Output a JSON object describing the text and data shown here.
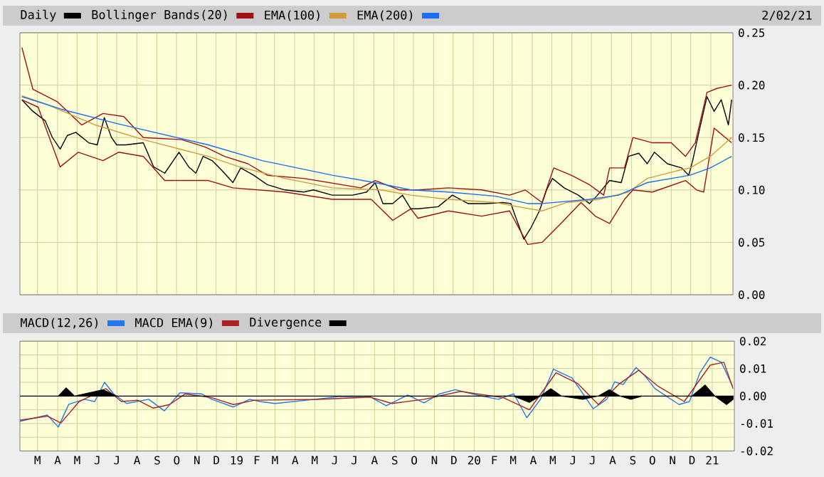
{
  "chart_data": [
    {
      "type": "line",
      "legend": "top",
      "grid": true,
      "tick_labels": "y",
      "annotations": [
        "2/02/21"
      ],
      "xlim": [
        "2018-02-02",
        "2021-02-04"
      ],
      "ylim": [
        0,
        0.25
      ],
      "xticks": [
        {
          "value": "2018-03-01",
          "label": null
        },
        {
          "value": "2018-04-01",
          "label": null
        },
        {
          "value": "2018-05-01",
          "label": null
        },
        {
          "value": "2018-06-01",
          "label": null
        },
        {
          "value": "2018-07-01",
          "label": null
        },
        {
          "value": "2018-08-01",
          "label": null
        },
        {
          "value": "2018-09-01",
          "label": null
        },
        {
          "value": "2018-10-01",
          "label": null
        },
        {
          "value": "2018-11-01",
          "label": null
        },
        {
          "value": "2018-12-01",
          "label": null
        },
        {
          "value": "2019-01-01",
          "label": null
        },
        {
          "value": "2019-02-01",
          "label": null
        },
        {
          "value": "2019-03-01",
          "label": null
        },
        {
          "value": "2019-04-01",
          "label": null
        },
        {
          "value": "2019-05-01",
          "label": null
        },
        {
          "value": "2019-06-01",
          "label": null
        },
        {
          "value": "2019-07-01",
          "label": null
        },
        {
          "value": "2019-08-01",
          "label": null
        },
        {
          "value": "2019-09-01",
          "label": null
        },
        {
          "value": "2019-10-01",
          "label": null
        },
        {
          "value": "2019-11-01",
          "label": null
        },
        {
          "value": "2019-12-01",
          "label": null
        },
        {
          "value": "2020-01-01",
          "label": null
        },
        {
          "value": "2020-02-01",
          "label": null
        },
        {
          "value": "2020-03-01",
          "label": null
        },
        {
          "value": "2020-04-01",
          "label": null
        },
        {
          "value": "2020-05-01",
          "label": null
        },
        {
          "value": "2020-06-01",
          "label": null
        },
        {
          "value": "2020-07-01",
          "label": null
        },
        {
          "value": "2020-08-01",
          "label": null
        },
        {
          "value": "2020-09-01",
          "label": null
        },
        {
          "value": "2020-10-01",
          "label": null
        },
        {
          "value": "2020-11-01",
          "label": null
        },
        {
          "value": "2020-12-01",
          "label": null
        },
        {
          "value": "2021-01-01",
          "label": null
        }
      ],
      "yticks": [
        {
          "value": 0,
          "label": "0.00"
        },
        {
          "value": 0.05,
          "label": "0.05"
        },
        {
          "value": 0.1,
          "label": "0.10"
        },
        {
          "value": 0.15,
          "label": "0.15"
        },
        {
          "value": 0.2,
          "label": "0.20"
        },
        {
          "value": 0.25,
          "label": "0.25"
        }
      ],
      "series": [
        {
          "name": "Daily",
          "color": "#000000",
          "x": [
            "2018-02-05",
            "2018-02-22",
            "2018-03-13",
            "2018-03-24",
            "2018-04-05",
            "2018-04-16",
            "2018-04-29",
            "2018-05-19",
            "2018-06-01",
            "2018-06-12",
            "2018-06-23",
            "2018-07-01",
            "2018-07-15",
            "2018-08-11",
            "2018-08-27",
            "2018-09-13",
            "2018-10-05",
            "2018-10-20",
            "2018-10-31",
            "2018-11-11",
            "2018-11-25",
            "2018-12-14",
            "2018-12-27",
            "2019-01-08",
            "2019-01-28",
            "2019-02-18",
            "2019-03-17",
            "2019-04-15",
            "2019-04-30",
            "2019-05-29",
            "2019-06-29",
            "2019-07-21",
            "2019-08-03",
            "2019-08-15",
            "2019-08-30",
            "2019-09-14",
            "2019-09-27",
            "2019-10-08",
            "2019-11-08",
            "2019-11-30",
            "2019-12-24",
            "2020-01-20",
            "2020-02-16",
            "2020-02-28",
            "2020-03-10",
            "2020-03-19",
            "2020-03-30",
            "2020-04-12",
            "2020-04-23",
            "2020-05-02",
            "2020-05-20",
            "2020-06-11",
            "2020-06-28",
            "2020-07-09",
            "2020-07-29",
            "2020-08-16",
            "2020-08-27",
            "2020-09-12",
            "2020-09-25",
            "2020-10-06",
            "2020-10-26",
            "2020-11-17",
            "2020-11-28",
            "2020-12-04",
            "2020-12-15",
            "2020-12-26",
            "2021-01-06",
            "2021-01-17",
            "2021-01-28",
            "2021-02-02"
          ],
          "values": [
            0.186,
            0.175,
            0.166,
            0.15,
            0.139,
            0.152,
            0.155,
            0.145,
            0.143,
            0.169,
            0.15,
            0.143,
            0.143,
            0.145,
            0.122,
            0.116,
            0.136,
            0.122,
            0.116,
            0.132,
            0.128,
            0.116,
            0.107,
            0.121,
            0.114,
            0.105,
            0.1,
            0.098,
            0.1,
            0.095,
            0.095,
            0.098,
            0.107,
            0.087,
            0.087,
            0.095,
            0.082,
            0.082,
            0.084,
            0.095,
            0.087,
            0.087,
            0.088,
            0.087,
            0.068,
            0.053,
            0.064,
            0.08,
            0.1,
            0.111,
            0.102,
            0.095,
            0.087,
            0.094,
            0.109,
            0.107,
            0.132,
            0.135,
            0.125,
            0.136,
            0.125,
            0.121,
            0.114,
            0.128,
            0.159,
            0.189,
            0.175,
            0.186,
            0.162,
            0.186
          ]
        },
        {
          "name": "Bollinger Bands(20)",
          "color": "#a01010",
          "x": [
            "2018-02-05",
            "2018-02-22",
            "2018-04-01",
            "2018-05-08",
            "2018-06-10",
            "2018-07-12",
            "2018-08-11",
            "2018-10-09",
            "2018-11-14",
            "2018-12-14",
            "2019-01-19",
            "2019-02-18",
            "2019-04-15",
            "2019-07-12",
            "2019-08-03",
            "2019-09-10",
            "2019-10-08",
            "2019-11-24",
            "2020-01-14",
            "2020-02-26",
            "2020-03-21",
            "2020-04-16",
            "2020-05-04",
            "2020-05-31",
            "2020-06-28",
            "2020-07-20",
            "2020-07-29",
            "2020-08-21",
            "2020-09-03",
            "2020-10-03",
            "2020-11-01",
            "2020-11-23",
            "2020-12-08",
            "2020-12-26",
            "2021-01-11",
            "2021-02-02"
          ],
          "values": [
            0.236,
            0.196,
            0.184,
            0.162,
            0.173,
            0.17,
            0.15,
            0.148,
            0.141,
            0.132,
            0.125,
            0.114,
            0.111,
            0.102,
            0.109,
            0.1,
            0.1,
            0.102,
            0.1,
            0.095,
            0.1,
            0.088,
            0.121,
            0.114,
            0.105,
            0.095,
            0.121,
            0.121,
            0.15,
            0.145,
            0.145,
            0.132,
            0.145,
            0.193,
            0.197,
            0.2
          ]
        },
        {
          "color": "#a01010",
          "x": [
            "2018-02-05",
            "2018-03-02",
            "2018-04-05",
            "2018-05-03",
            "2018-06-10",
            "2018-07-04",
            "2018-08-11",
            "2018-09-13",
            "2018-11-19",
            "2018-12-27",
            "2019-03-17",
            "2019-05-29",
            "2019-07-28",
            "2019-08-30",
            "2019-09-27",
            "2019-10-08",
            "2019-11-24",
            "2020-01-14",
            "2020-02-26",
            "2020-03-25",
            "2020-04-16",
            "2020-05-15",
            "2020-06-15",
            "2020-07-07",
            "2020-07-29",
            "2020-08-21",
            "2020-09-03",
            "2020-10-03",
            "2020-11-23",
            "2020-12-10",
            "2020-12-21",
            "2021-01-06",
            "2021-02-02"
          ],
          "values": [
            0.186,
            0.179,
            0.122,
            0.136,
            0.128,
            0.136,
            0.132,
            0.109,
            0.109,
            0.102,
            0.098,
            0.091,
            0.091,
            0.071,
            0.082,
            0.073,
            0.08,
            0.075,
            0.08,
            0.048,
            0.05,
            0.068,
            0.088,
            0.075,
            0.068,
            0.091,
            0.1,
            0.098,
            0.109,
            0.1,
            0.098,
            0.159,
            0.145
          ]
        },
        {
          "name": "EMA(100)",
          "color": "#d49a3a",
          "x": [
            "2018-02-05",
            "2018-03-14",
            "2018-05-29",
            "2018-08-11",
            "2018-11-19",
            "2019-01-06",
            "2019-03-17",
            "2019-05-29",
            "2019-08-12",
            "2019-09-27",
            "2019-11-24",
            "2020-02-05",
            "2020-03-10",
            "2020-04-16",
            "2020-05-24",
            "2020-07-13",
            "2020-08-27",
            "2020-09-25",
            "2020-11-08",
            "2020-11-30",
            "2020-12-31",
            "2021-02-02"
          ],
          "values": [
            0.19,
            0.182,
            0.162,
            0.148,
            0.132,
            0.122,
            0.111,
            0.102,
            0.1,
            0.095,
            0.091,
            0.088,
            0.084,
            0.08,
            0.088,
            0.091,
            0.098,
            0.111,
            0.118,
            0.121,
            0.132,
            0.15
          ]
        },
        {
          "name": "EMA(200)",
          "color": "#1a6ef0",
          "x": [
            "2018-02-05",
            "2018-04-07",
            "2018-07-04",
            "2018-11-19",
            "2019-02-10",
            "2019-05-29",
            "2019-08-03",
            "2019-09-27",
            "2019-11-24",
            "2020-02-05",
            "2020-03-25",
            "2020-04-16",
            "2020-06-28",
            "2020-08-12",
            "2020-09-25",
            "2020-11-30",
            "2020-12-31",
            "2021-02-02"
          ],
          "values": [
            0.189,
            0.177,
            0.163,
            0.143,
            0.128,
            0.114,
            0.107,
            0.1,
            0.098,
            0.094,
            0.087,
            0.087,
            0.091,
            0.095,
            0.107,
            0.114,
            0.121,
            0.132
          ]
        }
      ]
    },
    {
      "type": "line",
      "legend": "top",
      "grid": true,
      "xlim": [
        "2018-02-02",
        "2021-02-04"
      ],
      "ylim": [
        -0.02,
        0.02
      ],
      "xticks": [
        {
          "value": "2018-03-01",
          "label": "M"
        },
        {
          "value": "2018-04-01",
          "label": "A"
        },
        {
          "value": "2018-05-01",
          "label": "M"
        },
        {
          "value": "2018-06-01",
          "label": "J"
        },
        {
          "value": "2018-07-01",
          "label": "J"
        },
        {
          "value": "2018-08-01",
          "label": "A"
        },
        {
          "value": "2018-09-01",
          "label": "S"
        },
        {
          "value": "2018-10-01",
          "label": "O"
        },
        {
          "value": "2018-11-01",
          "label": "N"
        },
        {
          "value": "2018-12-01",
          "label": "D"
        },
        {
          "value": "2019-01-01",
          "label": "19"
        },
        {
          "value": "2019-02-01",
          "label": "F"
        },
        {
          "value": "2019-03-01",
          "label": "M"
        },
        {
          "value": "2019-04-01",
          "label": "A"
        },
        {
          "value": "2019-05-01",
          "label": "M"
        },
        {
          "value": "2019-06-01",
          "label": "J"
        },
        {
          "value": "2019-07-01",
          "label": "J"
        },
        {
          "value": "2019-08-01",
          "label": "A"
        },
        {
          "value": "2019-09-01",
          "label": "S"
        },
        {
          "value": "2019-10-01",
          "label": "O"
        },
        {
          "value": "2019-11-01",
          "label": "N"
        },
        {
          "value": "2019-12-01",
          "label": "D"
        },
        {
          "value": "2020-01-01",
          "label": "20"
        },
        {
          "value": "2020-02-01",
          "label": "F"
        },
        {
          "value": "2020-03-01",
          "label": "M"
        },
        {
          "value": "2020-04-01",
          "label": "A"
        },
        {
          "value": "2020-05-01",
          "label": "M"
        },
        {
          "value": "2020-06-01",
          "label": "J"
        },
        {
          "value": "2020-07-01",
          "label": "J"
        },
        {
          "value": "2020-08-01",
          "label": "A"
        },
        {
          "value": "2020-09-01",
          "label": "S"
        },
        {
          "value": "2020-10-01",
          "label": "O"
        },
        {
          "value": "2020-11-01",
          "label": "N"
        },
        {
          "value": "2020-12-01",
          "label": "D"
        },
        {
          "value": "2021-01-01",
          "label": "21"
        }
      ],
      "yticks": [
        {
          "value": -0.02,
          "label": "-0.02"
        },
        {
          "value": -0.015,
          "label": null
        },
        {
          "value": -0.01,
          "label": "-0.01"
        },
        {
          "value": -0.005,
          "label": null
        },
        {
          "value": 0,
          "label": "0.00"
        },
        {
          "value": 0.005,
          "label": null
        },
        {
          "value": 0.01,
          "label": "0.01"
        },
        {
          "value": 0.015,
          "label": null
        },
        {
          "value": 0.02,
          "label": "0.02"
        }
      ],
      "series": [
        {
          "name": "MACD(12,26)",
          "color": "#2277ee",
          "x": [
            "2018-02-02",
            "2018-03-16",
            "2018-04-02",
            "2018-04-18",
            "2018-05-12",
            "2018-05-28",
            "2018-06-12",
            "2018-06-26",
            "2018-07-16",
            "2018-08-19",
            "2018-09-12",
            "2018-10-06",
            "2018-11-08",
            "2018-11-24",
            "2018-12-27",
            "2019-01-21",
            "2019-02-06",
            "2019-03-01",
            "2019-04-19",
            "2019-06-07",
            "2019-07-25",
            "2019-08-19",
            "2019-09-21",
            "2019-10-16",
            "2019-11-09",
            "2019-12-03",
            "2020-01-05",
            "2020-02-07",
            "2020-03-02",
            "2020-03-22",
            "2020-04-12",
            "2020-05-02",
            "2020-05-31",
            "2020-07-02",
            "2020-07-23",
            "2020-08-04",
            "2020-08-17",
            "2020-09-06",
            "2020-09-19",
            "2020-10-05",
            "2020-11-11",
            "2020-11-27",
            "2020-12-13",
            "2020-12-29",
            "2021-01-15",
            "2021-02-01"
          ],
          "values": [
            -0.0092,
            -0.0069,
            -0.0113,
            -0.003,
            -0.0012,
            -0.002,
            0.005,
            0.0008,
            -0.0027,
            -0.0012,
            -0.0054,
            0.0012,
            0.0008,
            -0.0012,
            -0.004,
            -0.0012,
            -0.002,
            -0.0027,
            -0.0015,
            -0.0002,
            -0.0002,
            -0.0035,
            0.0004,
            -0.0025,
            0.0008,
            0.0023,
            0.0004,
            -0.0012,
            0.0008,
            -0.0079,
            -0.0012,
            0.0098,
            0.0065,
            -0.0046,
            -0.0012,
            0.0052,
            0.0042,
            0.0104,
            0.0075,
            0.0027,
            -0.0031,
            -0.002,
            0.0085,
            0.0142,
            0.0123,
            0.0037
          ]
        },
        {
          "name": "MACD EMA(9)",
          "color": "#aa2222",
          "x": [
            "2018-02-02",
            "2018-03-16",
            "2018-04-06",
            "2018-05-04",
            "2018-06-14",
            "2018-07-08",
            "2018-08-02",
            "2018-08-26",
            "2018-09-20",
            "2018-10-14",
            "2018-11-24",
            "2018-12-27",
            "2019-01-29",
            "2019-05-05",
            "2019-07-25",
            "2019-08-28",
            "2019-10-16",
            "2019-12-11",
            "2020-02-15",
            "2020-03-26",
            "2020-05-06",
            "2020-06-08",
            "2020-07-10",
            "2020-08-12",
            "2020-09-10",
            "2020-10-09",
            "2020-11-19",
            "2020-12-29",
            "2021-01-19",
            "2021-02-02"
          ],
          "values": [
            -0.0088,
            -0.0073,
            -0.0098,
            -0.002,
            0.0027,
            -0.002,
            -0.0015,
            -0.0044,
            -0.0031,
            0.0008,
            -0.0006,
            -0.0031,
            -0.0015,
            -0.0012,
            -0.0004,
            -0.0027,
            -0.0012,
            0.0017,
            -0.0006,
            -0.005,
            0.0085,
            0.0046,
            -0.0031,
            0.0046,
            0.0094,
            0.0037,
            -0.002,
            0.0113,
            0.0123,
            0.0027
          ]
        },
        {
          "name": "Divergence",
          "type": "area",
          "color": "#000000",
          "x": [
            "2018-02-02",
            "2018-04-02",
            "2018-04-14",
            "2018-04-27",
            "2018-06-10",
            "2018-06-30",
            "2020-03-01",
            "2020-03-26",
            "2020-04-12",
            "2020-04-28",
            "2020-05-14",
            "2020-06-16",
            "2020-07-10",
            "2020-07-27",
            "2020-08-12",
            "2020-08-29",
            "2020-09-15",
            "2020-12-01",
            "2020-12-21",
            "2021-01-05",
            "2021-01-23",
            "2021-02-02"
          ],
          "values": [
            0,
            0,
            0.003,
            0,
            0.0023,
            0,
            0,
            -0.0023,
            0,
            0.0027,
            0,
            -0.0012,
            0,
            0.0023,
            0,
            -0.0012,
            0,
            0,
            0.004,
            0,
            -0.0031,
            -0.0012
          ]
        }
      ]
    }
  ]
}
